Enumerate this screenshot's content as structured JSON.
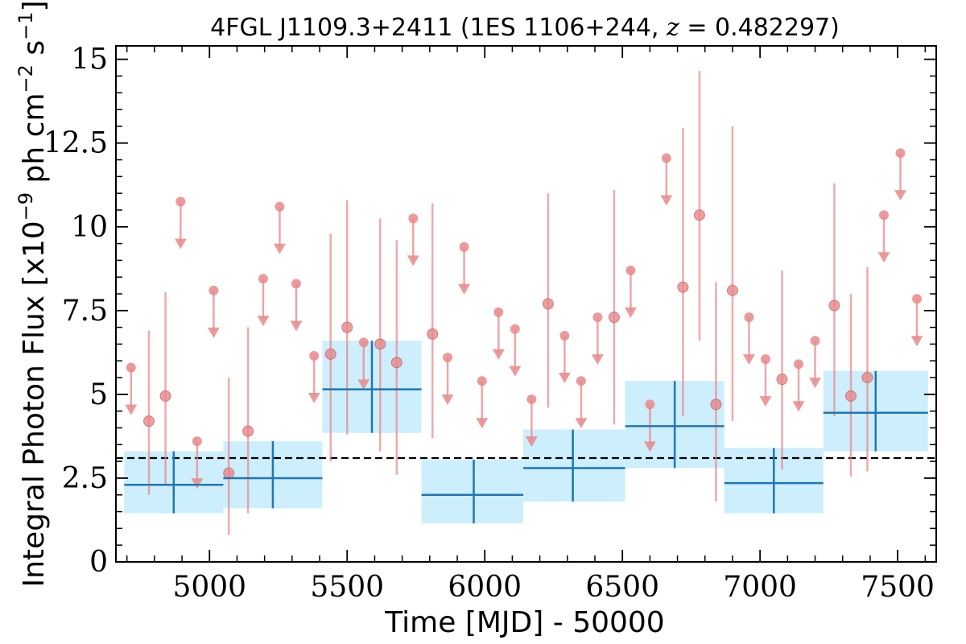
{
  "chart_data": {
    "type": "scatter",
    "title": {
      "main": "4FGL J1109.3+2411 (1ES 1106+244, ",
      "z_symbol": "z",
      "z_value": " = 0.482297",
      "close": ")"
    },
    "xlabel": "Time [MJD] - 50000",
    "ylabel": {
      "main": "Integral Photon Flux [x10",
      "exp1": "−9",
      "mid": " ph cm",
      "exp2": "−2",
      "mid2": " s",
      "exp3": "−1",
      "close": "]"
    },
    "xlim": [
      4660,
      7640
    ],
    "ylim": [
      0,
      15.4
    ],
    "xticks": [
      5000,
      5500,
      6000,
      6500,
      7000,
      7500
    ],
    "xtick_labels": [
      "5000",
      "5500",
      "6000",
      "6500",
      "7000",
      "7500"
    ],
    "yticks": [
      0,
      2.5,
      5,
      7.5,
      10,
      12.5,
      15
    ],
    "ytick_labels": [
      "0",
      "2.5",
      "5",
      "7.5",
      "10",
      "12.5",
      "15"
    ],
    "average_flux": 3.1,
    "colors": {
      "monthly": "#e8888a",
      "binned_line": "#1f77b4",
      "binned_fill": "#cdeefc",
      "average": "#000000"
    },
    "series": [
      {
        "kind": "binned",
        "points": [
          {
            "x": 4870,
            "x0": 4690,
            "x1": 5050,
            "y": 2.3,
            "ylo": 1.45,
            "yhi": 3.3
          },
          {
            "x": 5230,
            "x0": 5050,
            "x1": 5410,
            "y": 2.5,
            "ylo": 1.6,
            "yhi": 3.6
          },
          {
            "x": 5590,
            "x0": 5410,
            "x1": 5770,
            "y": 5.15,
            "ylo": 3.85,
            "yhi": 6.6
          },
          {
            "x": 5960,
            "x0": 5770,
            "x1": 6140,
            "y": 2.0,
            "ylo": 1.15,
            "yhi": 3.05
          },
          {
            "x": 6320,
            "x0": 6140,
            "x1": 6510,
            "y": 2.8,
            "ylo": 1.8,
            "yhi": 3.95
          },
          {
            "x": 6690,
            "x0": 6510,
            "x1": 6870,
            "y": 4.05,
            "ylo": 2.8,
            "yhi": 5.4
          },
          {
            "x": 7050,
            "x0": 6870,
            "x1": 7230,
            "y": 2.35,
            "ylo": 1.45,
            "yhi": 3.4
          },
          {
            "x": 7420,
            "x0": 7230,
            "x1": 7610,
            "y": 4.45,
            "ylo": 3.3,
            "yhi": 5.7
          }
        ]
      },
      {
        "kind": "monthly-detections",
        "points": [
          {
            "x": 4780,
            "y": 4.2,
            "ylo": 2.0,
            "yhi": 6.9
          },
          {
            "x": 4840,
            "y": 4.95,
            "ylo": 2.3,
            "yhi": 8.05
          },
          {
            "x": 5070,
            "y": 2.65,
            "ylo": 0.8,
            "yhi": 5.5
          },
          {
            "x": 5140,
            "y": 3.9,
            "ylo": 1.45,
            "yhi": 7.0
          },
          {
            "x": 5440,
            "y": 6.2,
            "ylo": 3.0,
            "yhi": 9.8
          },
          {
            "x": 5500,
            "y": 7.0,
            "ylo": 3.8,
            "yhi": 10.8
          },
          {
            "x": 5620,
            "y": 6.5,
            "ylo": 3.3,
            "yhi": 10.25
          },
          {
            "x": 5680,
            "y": 5.95,
            "ylo": 2.6,
            "yhi": 9.6
          },
          {
            "x": 5810,
            "y": 6.8,
            "ylo": 3.7,
            "yhi": 10.7
          },
          {
            "x": 6230,
            "y": 7.7,
            "ylo": 4.6,
            "yhi": 11.0
          },
          {
            "x": 6470,
            "y": 7.3,
            "ylo": 4.1,
            "yhi": 11.1
          },
          {
            "x": 6720,
            "y": 8.2,
            "ylo": 4.35,
            "yhi": 12.95
          },
          {
            "x": 6780,
            "y": 10.35,
            "ylo": 6.6,
            "yhi": 14.65
          },
          {
            "x": 6840,
            "y": 4.7,
            "ylo": 1.8,
            "yhi": 8.35
          },
          {
            "x": 6900,
            "y": 8.1,
            "ylo": 4.2,
            "yhi": 13.0
          },
          {
            "x": 7080,
            "y": 5.45,
            "ylo": 2.75,
            "yhi": 8.7
          },
          {
            "x": 7270,
            "y": 7.65,
            "ylo": 4.35,
            "yhi": 11.3
          },
          {
            "x": 7330,
            "y": 4.95,
            "ylo": 2.55,
            "yhi": 8.0
          },
          {
            "x": 7390,
            "y": 5.5,
            "ylo": 2.7,
            "yhi": 8.8
          }
        ]
      },
      {
        "kind": "monthly-upper-limits",
        "points": [
          {
            "x": 4715,
            "y": 5.8
          },
          {
            "x": 4895,
            "y": 10.75
          },
          {
            "x": 4955,
            "y": 3.6
          },
          {
            "x": 5015,
            "y": 8.1
          },
          {
            "x": 5195,
            "y": 8.45
          },
          {
            "x": 5255,
            "y": 10.6
          },
          {
            "x": 5315,
            "y": 8.3
          },
          {
            "x": 5380,
            "y": 6.15
          },
          {
            "x": 5560,
            "y": 6.55
          },
          {
            "x": 5740,
            "y": 10.25
          },
          {
            "x": 5865,
            "y": 6.1
          },
          {
            "x": 5925,
            "y": 9.4
          },
          {
            "x": 5990,
            "y": 5.4
          },
          {
            "x": 6050,
            "y": 7.45
          },
          {
            "x": 6110,
            "y": 6.95
          },
          {
            "x": 6170,
            "y": 4.85
          },
          {
            "x": 6290,
            "y": 6.75
          },
          {
            "x": 6350,
            "y": 5.4
          },
          {
            "x": 6410,
            "y": 7.3
          },
          {
            "x": 6530,
            "y": 8.7
          },
          {
            "x": 6600,
            "y": 4.7
          },
          {
            "x": 6660,
            "y": 12.05
          },
          {
            "x": 6960,
            "y": 7.3
          },
          {
            "x": 7020,
            "y": 6.05
          },
          {
            "x": 7140,
            "y": 5.9
          },
          {
            "x": 7200,
            "y": 6.6
          },
          {
            "x": 7450,
            "y": 10.35
          },
          {
            "x": 7510,
            "y": 12.2
          },
          {
            "x": 7570,
            "y": 7.85
          }
        ]
      }
    ]
  }
}
